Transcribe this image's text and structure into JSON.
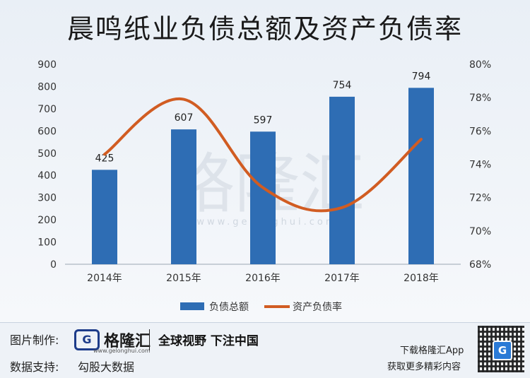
{
  "title": "晨鸣纸业负债总额及资产负债率",
  "chart_data": {
    "type": "bar+line",
    "title": "晨鸣纸业负债总额及资产负债率",
    "categories": [
      "2014年",
      "2015年",
      "2016年",
      "2017年",
      "2018年"
    ],
    "series": [
      {
        "name": "负债总额",
        "type": "bar",
        "axis": "left",
        "values": [
          425,
          607,
          597,
          754,
          794
        ],
        "color": "#2e6db4"
      },
      {
        "name": "资产负债率",
        "type": "line",
        "axis": "right",
        "values": [
          74.6,
          77.9,
          72.6,
          71.4,
          75.5
        ],
        "color": "#d15c22"
      }
    ],
    "left_axis": {
      "min": 0,
      "max": 900,
      "step": 100,
      "ticks": [
        "0",
        "100",
        "200",
        "300",
        "400",
        "500",
        "600",
        "700",
        "800",
        "900"
      ]
    },
    "right_axis": {
      "min": 68,
      "max": 80,
      "step": 2,
      "ticks": [
        "68%",
        "70%",
        "72%",
        "74%",
        "76%",
        "78%",
        "80%"
      ]
    },
    "bar_labels": [
      "425",
      "607",
      "597",
      "754",
      "794"
    ],
    "legend": [
      "负债总额",
      "资产负债率"
    ],
    "legend_position": "bottom-center"
  },
  "watermark": {
    "text": "格隆汇",
    "url": "www.gelonghui.com"
  },
  "footer": {
    "made_by_label": "图片制作:",
    "data_label": "数据支持:",
    "data_source": "勾股大数据",
    "brand_letter": "G",
    "brand_name": "格隆汇",
    "brand_url": "www.gelonghui.com",
    "slogan": "全球视野 下注中国",
    "app_line1": "下载格隆汇App",
    "app_line2": "获取更多精彩内容",
    "qr_letter": "G"
  }
}
